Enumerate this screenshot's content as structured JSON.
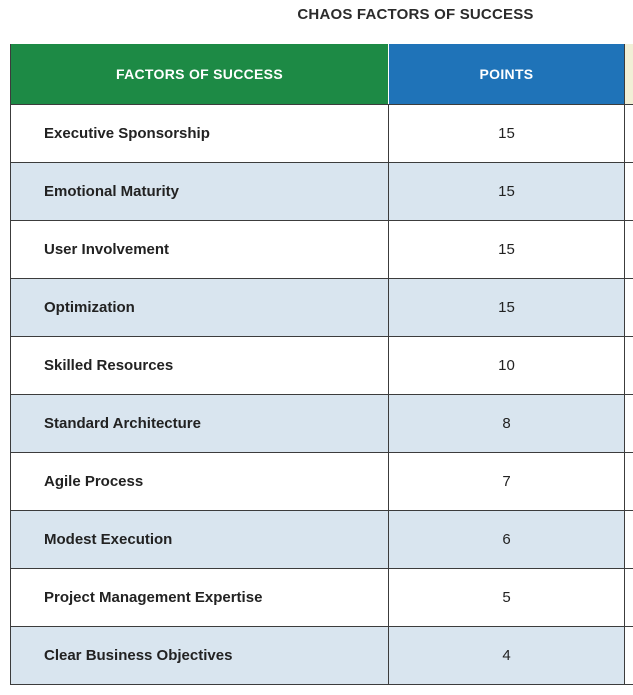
{
  "title": "CHAOS FACTORS OF SUCCESS",
  "table": {
    "headers": {
      "factor": "FACTORS OF SUCCESS",
      "points": "POINTS"
    },
    "rows": [
      {
        "factor": "Executive Sponsorship",
        "points": "15"
      },
      {
        "factor": "Emotional Maturity",
        "points": "15"
      },
      {
        "factor": "User Involvement",
        "points": "15"
      },
      {
        "factor": "Optimization",
        "points": "15"
      },
      {
        "factor": "Skilled Resources",
        "points": "10"
      },
      {
        "factor": "Standard Architecture",
        "points": "8"
      },
      {
        "factor": "Agile Process",
        "points": "7"
      },
      {
        "factor": "Modest Execution",
        "points": "6"
      },
      {
        "factor": "Project Management Expertise",
        "points": "5"
      },
      {
        "factor": "Clear Business Objectives",
        "points": "4"
      }
    ]
  },
  "colors": {
    "factor_header": "#1d8a45",
    "points_header": "#1f73b8",
    "alt_row": "#d9e5ef"
  }
}
